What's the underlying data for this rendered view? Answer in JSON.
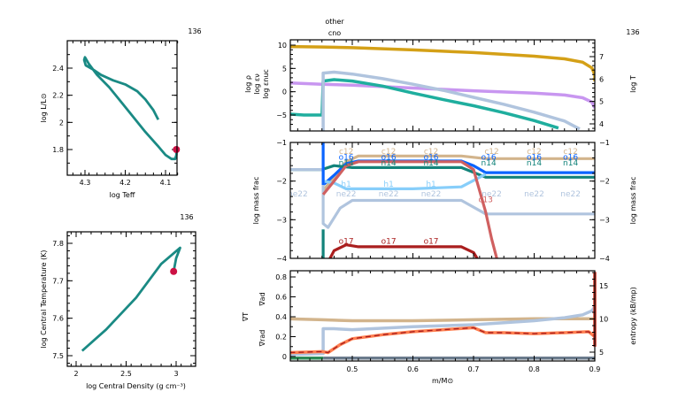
{
  "model_number": "136",
  "chart_data": [
    {
      "id": "hr",
      "type": "line",
      "title": "",
      "corner_label": "136",
      "xlabel": "log Teff",
      "ylabel": "log L/L⊙",
      "xlim": [
        4.34,
        4.06
      ],
      "ylim": [
        1.62,
        2.6
      ],
      "xticks": [
        4.3,
        4.2,
        4.1
      ],
      "xtick_labels": [
        "4.3",
        "4.2",
        "4.1"
      ],
      "yticks": [
        1.8,
        2.0,
        2.2,
        2.4
      ],
      "ytick_labels": [
        "1.8",
        "2",
        "2.2",
        "2.4"
      ],
      "series": [
        {
          "name": "track",
          "color": "#1a8a84",
          "x": [
            4.118,
            4.13,
            4.15,
            4.17,
            4.2,
            4.23,
            4.26,
            4.28,
            4.298,
            4.302,
            4.3,
            4.29,
            4.27,
            4.24,
            4.21,
            4.18,
            4.15,
            4.12,
            4.1,
            4.085,
            4.076,
            4.073,
            4.073
          ],
          "y": [
            2.02,
            2.09,
            2.17,
            2.23,
            2.28,
            2.31,
            2.35,
            2.39,
            2.42,
            2.46,
            2.48,
            2.43,
            2.35,
            2.26,
            2.15,
            2.04,
            1.93,
            1.83,
            1.76,
            1.73,
            1.73,
            1.76,
            1.8
          ]
        }
      ],
      "current_point": {
        "x": 4.073,
        "y": 1.8,
        "color": "#cc1144"
      }
    },
    {
      "id": "center",
      "type": "line",
      "corner_label": "136",
      "xlabel": "log Central Density (g cm⁻³)",
      "ylabel": "log Central Temperature (K)",
      "xlim": [
        1.9,
        3.2
      ],
      "ylim": [
        7.47,
        7.83
      ],
      "xticks": [
        2,
        2.5,
        3
      ],
      "xtick_labels": [
        "2",
        "2.5",
        "3"
      ],
      "yticks": [
        7.5,
        7.6,
        7.7,
        7.8
      ],
      "ytick_labels": [
        "7.5",
        "7.6",
        "7.7",
        "7.8"
      ],
      "series": [
        {
          "name": "track",
          "color": "#1a8a84",
          "x": [
            2.06,
            2.3,
            2.6,
            2.85,
            3.04,
            3.0,
            2.975
          ],
          "y": [
            7.513,
            7.57,
            7.655,
            7.745,
            7.788,
            7.76,
            7.725
          ]
        }
      ],
      "current_point": {
        "x": 2.975,
        "y": 7.725,
        "color": "#cc1144"
      }
    },
    {
      "id": "profile-top",
      "type": "line",
      "corner_label": "136",
      "annotations": [
        "other",
        "cno"
      ],
      "xlim": [
        0.397,
        0.9
      ],
      "ylim_left": [
        -8,
        11
      ],
      "yticks_left": [
        -5,
        0,
        5,
        10
      ],
      "ytick_labels_left": [
        "−5",
        "0",
        "5",
        "10"
      ],
      "ylim_right": [
        3.7,
        7.7
      ],
      "yticks_right": [
        4,
        5,
        6,
        7
      ],
      "ytick_labels_right": [
        "4",
        "5",
        "6",
        "7"
      ],
      "ylabels_left": [
        {
          "text": "log ρ",
          "color": "#c896f0"
        },
        {
          "text": "log εν",
          "color": "#1fae9e"
        },
        {
          "text": "log εnuc",
          "color": "#b0c4de"
        }
      ],
      "ylabel_right": {
        "text": "log T",
        "color": "#d4a017"
      },
      "series": [
        {
          "name": "log T",
          "axis": "right",
          "color": "#d4a017",
          "x": [
            0.397,
            0.45,
            0.5,
            0.6,
            0.7,
            0.8,
            0.85,
            0.88,
            0.895,
            0.9,
            0.9
          ],
          "y": [
            7.45,
            7.43,
            7.4,
            7.3,
            7.18,
            7.02,
            6.9,
            6.75,
            6.5,
            6.2,
            5.9
          ]
        },
        {
          "name": "log rho",
          "axis": "left",
          "color": "#c896f0",
          "x": [
            0.397,
            0.45,
            0.5,
            0.6,
            0.7,
            0.8,
            0.85,
            0.88,
            0.895,
            0.9
          ],
          "y": [
            1.9,
            1.6,
            1.4,
            0.8,
            0.2,
            -0.3,
            -0.7,
            -1.3,
            -2.2,
            -3.5
          ]
        },
        {
          "name": "log eps_nu",
          "axis": "left",
          "color": "#1fae9e",
          "x": [
            0.397,
            0.42,
            0.45,
            0.452,
            0.47,
            0.5,
            0.55,
            0.6,
            0.65,
            0.7,
            0.75,
            0.8,
            0.84
          ],
          "y": [
            -4.8,
            -5.0,
            -5.0,
            2.3,
            2.6,
            2.3,
            1.2,
            -0.3,
            -1.7,
            -3.0,
            -4.5,
            -6.2,
            -7.8
          ]
        },
        {
          "name": "log eps_nuc",
          "axis": "left",
          "color": "#b0c4de",
          "x": [
            0.452,
            0.452,
            0.47,
            0.5,
            0.55,
            0.6,
            0.65,
            0.7,
            0.75,
            0.8,
            0.85,
            0.875
          ],
          "y": [
            -9,
            4.0,
            4.2,
            3.8,
            2.8,
            1.6,
            0.3,
            -1.2,
            -2.7,
            -4.4,
            -6.3,
            -8
          ]
        }
      ]
    },
    {
      "id": "profile-middle",
      "type": "line",
      "xlim": [
        0.397,
        0.9
      ],
      "ylim": [
        -4,
        -1
      ],
      "yticks": [
        -4,
        -3,
        -2,
        -1
      ],
      "ytick_labels": [
        "−4",
        "−3",
        "−2",
        "−1"
      ],
      "ylabel_left": "log mass frac",
      "ylabel_right": "log mass frac",
      "series": [
        {
          "name": "c12",
          "color": "#d2b48c",
          "x": [
            0.452,
            0.47,
            0.49,
            0.51,
            0.6,
            0.68,
            0.72,
            0.9
          ],
          "y": [
            -2.25,
            -1.9,
            -1.5,
            -1.35,
            -1.35,
            -1.35,
            -1.42,
            -1.42
          ]
        },
        {
          "name": "o16",
          "color": "#0a64ff",
          "x": [
            0.452,
            0.47,
            0.49,
            0.51,
            0.6,
            0.68,
            0.7,
            0.72,
            0.9
          ],
          "y": [
            -2.1,
            -1.85,
            -1.55,
            -1.48,
            -1.48,
            -1.48,
            -1.6,
            -1.78,
            -1.78
          ]
        },
        {
          "name": "n14",
          "color": "#12837a",
          "x": [
            0.397,
            0.45,
            0.47,
            0.5,
            0.6,
            0.68,
            0.72,
            0.9
          ],
          "y": [
            -1.7,
            -1.7,
            -1.6,
            -1.65,
            -1.65,
            -1.65,
            -1.9,
            -1.9
          ]
        },
        {
          "name": "h1",
          "color": "#87cefa",
          "x": [
            0.452,
            0.47,
            0.49,
            0.5,
            0.6,
            0.68,
            0.72
          ],
          "y": [
            -2.0,
            -2.05,
            -2.2,
            -2.2,
            -2.2,
            -2.15,
            -1.82
          ]
        },
        {
          "name": "ne22",
          "color": "#b0c4de",
          "x": [
            0.397,
            0.452,
            0.452,
            0.46,
            0.48,
            0.5,
            0.6,
            0.68,
            0.72,
            0.9
          ],
          "y": [
            -1.7,
            -1.7,
            -3.1,
            -3.2,
            -2.7,
            -2.5,
            -2.5,
            -2.5,
            -2.85,
            -2.85
          ]
        },
        {
          "name": "c13",
          "color": "#d06060",
          "x": [
            0.452,
            0.47,
            0.49,
            0.51,
            0.6,
            0.68,
            0.7,
            0.72,
            0.73,
            0.74
          ],
          "y": [
            -2.35,
            -2.0,
            -1.6,
            -1.5,
            -1.5,
            -1.5,
            -1.7,
            -2.8,
            -3.5,
            -4.1
          ]
        },
        {
          "name": "o17",
          "color": "#aa1e1e",
          "x": [
            0.46,
            0.47,
            0.49,
            0.51,
            0.6,
            0.68,
            0.7,
            0.71
          ],
          "y": [
            -4.1,
            -3.8,
            -3.65,
            -3.7,
            -3.7,
            -3.7,
            -3.85,
            -4.1
          ]
        },
        {
          "name": "core-marker",
          "color": "#0a64ff",
          "x": [
            0.452,
            0.452
          ],
          "y": [
            -1,
            -2.1
          ]
        },
        {
          "name": "core-marker-n14",
          "color": "#12837a",
          "x": [
            0.452,
            0.452
          ],
          "y": [
            -3.25,
            -4.0
          ]
        }
      ],
      "labels": [
        {
          "text": "c12",
          "color": "#d2b48c",
          "x": [
            0.49,
            0.56,
            0.63,
            0.73,
            0.8,
            0.86
          ],
          "y": -1.3
        },
        {
          "text": "o16",
          "color": "#0a64ff",
          "x": [
            0.49,
            0.56,
            0.63,
            0.725,
            0.8,
            0.86
          ],
          "y": -1.45
        },
        {
          "text": "n14",
          "color": "#12837a",
          "x": [
            0.49,
            0.56,
            0.63,
            0.725,
            0.8,
            0.86
          ],
          "y": -1.6
        },
        {
          "text": "h1",
          "color": "#87cefa",
          "x": [
            0.49,
            0.56,
            0.63
          ],
          "y": -2.15
        },
        {
          "text": "ne22",
          "color": "#b0c4de",
          "x": [
            0.41,
            0.49,
            0.56,
            0.63,
            0.73,
            0.8,
            0.86
          ],
          "y": -2.4
        },
        {
          "text": "c13",
          "color": "#d06060",
          "x": [
            0.72
          ],
          "y": -2.55
        },
        {
          "text": "o17",
          "color": "#aa1e1e",
          "x": [
            0.49,
            0.56,
            0.63
          ],
          "y": -3.62
        }
      ]
    },
    {
      "id": "profile-bottom",
      "type": "line",
      "xlim": [
        0.397,
        0.9
      ],
      "xlabel": "m/M⊙",
      "xticks": [
        0.5,
        0.6,
        0.7,
        0.8,
        0.9
      ],
      "xtick_labels": [
        "0.5",
        "0.6",
        "0.7",
        "0.8",
        "0.9"
      ],
      "ylim_left": [
        -0.02,
        0.87
      ],
      "yticks_left": [
        0,
        0.2,
        0.4,
        0.6,
        0.8
      ],
      "ytick_labels_left": [
        "0",
        "0.2",
        "0.4",
        "0.6",
        "0.8"
      ],
      "ylim_right": [
        3.3,
        17.2
      ],
      "yticks_right": [
        5,
        10,
        15
      ],
      "ytick_labels_right": [
        "5",
        "10",
        "15"
      ],
      "ylabels_left": [
        {
          "text": "∇ad",
          "color": "#d2b48c"
        },
        {
          "text": "∇T",
          "color": "#aa1e1e"
        },
        {
          "text": "∇rad",
          "color": "#ff7f50"
        }
      ],
      "ylabel_right": "entropy (kB/mp)",
      "series": [
        {
          "name": "grad_ad",
          "axis": "left",
          "color": "#d2b48c",
          "x": [
            0.397,
            0.45,
            0.5,
            0.6,
            0.7,
            0.8,
            0.9
          ],
          "y": [
            0.38,
            0.37,
            0.36,
            0.36,
            0.37,
            0.38,
            0.38
          ]
        },
        {
          "name": "entropy",
          "axis": "left",
          "color": "#b0c4de",
          "x": [
            0.397,
            0.452,
            0.452,
            0.47,
            0.5,
            0.6,
            0.7,
            0.8,
            0.85,
            0.88,
            0.895,
            0.9
          ],
          "y": [
            0.02,
            0.03,
            0.28,
            0.28,
            0.27,
            0.3,
            0.32,
            0.36,
            0.39,
            0.42,
            0.46,
            0.5
          ]
        },
        {
          "name": "grad_rad",
          "axis": "left",
          "color": "#ff7f50",
          "x": [
            0.397,
            0.45,
            0.46,
            0.48,
            0.5,
            0.55,
            0.6,
            0.65,
            0.7,
            0.72,
            0.75,
            0.8,
            0.85,
            0.89,
            0.9
          ],
          "y": [
            0.04,
            0.05,
            0.04,
            0.12,
            0.18,
            0.22,
            0.25,
            0.27,
            0.29,
            0.24,
            0.24,
            0.23,
            0.24,
            0.25,
            0.2
          ]
        },
        {
          "name": "grad_T",
          "axis": "left",
          "color": "#aa1e1e",
          "dashed": true,
          "x": [
            0.397,
            0.45,
            0.46,
            0.48,
            0.5,
            0.55,
            0.6,
            0.65,
            0.7,
            0.72,
            0.75,
            0.8,
            0.85,
            0.89,
            0.9
          ],
          "y": [
            0.04,
            0.05,
            0.04,
            0.12,
            0.18,
            0.22,
            0.25,
            0.27,
            0.29,
            0.24,
            0.24,
            0.23,
            0.24,
            0.25,
            0.2
          ]
        },
        {
          "name": "baseline-grey",
          "axis": "left",
          "color": "#6b7b8c",
          "x": [
            0.452,
            0.9
          ],
          "y": [
            -0.015,
            -0.015
          ]
        },
        {
          "name": "baseline-green",
          "axis": "left",
          "color": "#2e8b57",
          "x": [
            0.397,
            0.452
          ],
          "y": [
            -0.015,
            -0.015
          ]
        },
        {
          "name": "surface-spike",
          "axis": "left",
          "color": "#d33a2c",
          "x": [
            0.9,
            0.9
          ],
          "y": [
            0.1,
            0.85
          ]
        }
      ]
    }
  ]
}
